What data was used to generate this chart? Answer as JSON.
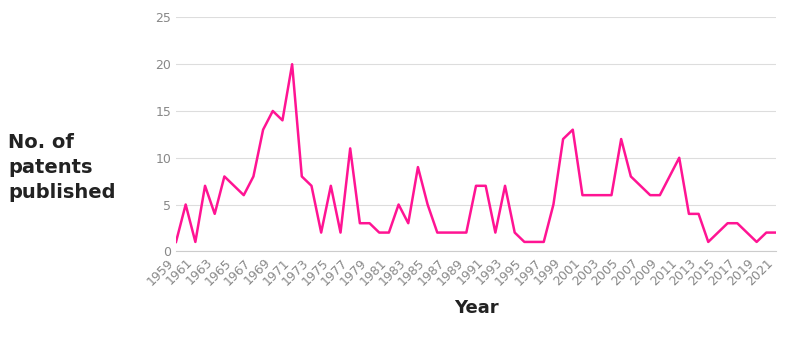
{
  "years": [
    1959,
    1960,
    1961,
    1962,
    1963,
    1964,
    1965,
    1966,
    1967,
    1968,
    1969,
    1970,
    1971,
    1972,
    1973,
    1974,
    1975,
    1976,
    1977,
    1978,
    1979,
    1980,
    1981,
    1982,
    1983,
    1984,
    1985,
    1986,
    1987,
    1988,
    1989,
    1990,
    1991,
    1992,
    1993,
    1994,
    1995,
    1996,
    1997,
    1998,
    1999,
    2000,
    2001,
    2002,
    2003,
    2004,
    2005,
    2006,
    2007,
    2008,
    2009,
    2010,
    2011,
    2012,
    2013,
    2014,
    2015,
    2016,
    2017,
    2018,
    2019,
    2020,
    2021
  ],
  "values": [
    1,
    5,
    1,
    7,
    4,
    8,
    7,
    6,
    8,
    13,
    15,
    14,
    20,
    8,
    7,
    2,
    7,
    2,
    11,
    3,
    3,
    2,
    2,
    5,
    3,
    9,
    5,
    2,
    2,
    2,
    2,
    7,
    7,
    2,
    7,
    2,
    1,
    1,
    1,
    5,
    12,
    13,
    6,
    6,
    6,
    6,
    12,
    8,
    7,
    6,
    6,
    8,
    10,
    4,
    4,
    1,
    2,
    3,
    3,
    2,
    1,
    2,
    2
  ],
  "line_color": "#FF1493",
  "line_width": 1.8,
  "xlabel": "Year",
  "ylabel": "No. of\npatents\npublished",
  "ylim": [
    0,
    25
  ],
  "yticks": [
    0,
    5,
    10,
    15,
    20,
    25
  ],
  "xtick_years": [
    1959,
    1961,
    1963,
    1965,
    1967,
    1969,
    1971,
    1973,
    1975,
    1977,
    1979,
    1981,
    1983,
    1985,
    1987,
    1989,
    1991,
    1993,
    1995,
    1997,
    1999,
    2001,
    2003,
    2005,
    2007,
    2009,
    2011,
    2013,
    2015,
    2017,
    2019,
    2021
  ],
  "background_color": "#ffffff",
  "axis_label_fontsize": 13,
  "ylabel_fontsize": 14,
  "tick_fontsize": 9,
  "tick_color": "#aaaaaa"
}
